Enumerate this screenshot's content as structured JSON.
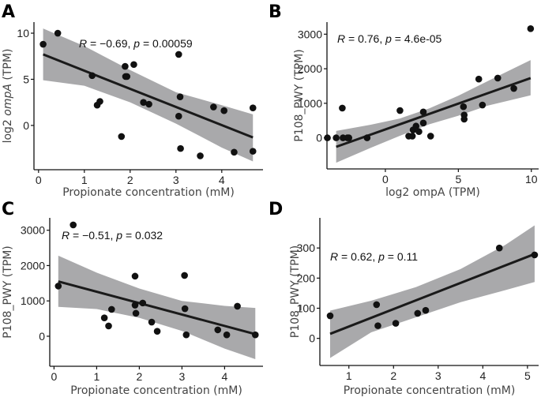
{
  "chart_data": [
    {
      "type": "scatter",
      "panel": "A",
      "title": "",
      "xlabel": "Propionate concentration (mM)",
      "ylabel": "log2 ompA (TPM)",
      "ylabel_prefix": "log2 ",
      "ylabel_italic": "ompA",
      "ylabel_suffix": " (TPM)",
      "xlim": [
        -0.1,
        4.9
      ],
      "ylim": [
        -4.8,
        11.2
      ],
      "xticks": [
        0,
        1,
        2,
        3,
        4
      ],
      "yticks": [
        0,
        5,
        10
      ],
      "grid": false,
      "annotation": {
        "r_label": "R",
        "r_value": " = −0.69, ",
        "p_label": "p",
        "p_value": " = 0.00059"
      },
      "fit": {
        "x": [
          0.1,
          4.68
        ],
        "y": [
          7.7,
          -1.3
        ]
      },
      "ci_band": {
        "x": [
          0.1,
          1.0,
          2.0,
          3.0,
          4.0,
          4.68
        ],
        "upper": [
          10.5,
          8.6,
          6.0,
          3.6,
          2.2,
          1.2
        ],
        "lower": [
          4.9,
          4.3,
          2.5,
          0.2,
          -2.4,
          -3.9
        ]
      },
      "points": {
        "x": [
          0.1,
          0.42,
          1.17,
          1.28,
          1.34,
          1.81,
          1.89,
          1.9,
          1.93,
          2.08,
          2.29,
          2.41,
          3.06,
          3.06,
          3.09,
          3.1,
          3.53,
          3.82,
          4.05,
          4.27,
          4.68,
          4.68
        ],
        "y": [
          8.8,
          10.0,
          5.4,
          2.2,
          2.6,
          -1.2,
          6.4,
          5.3,
          5.3,
          6.6,
          2.5,
          2.3,
          7.7,
          1.0,
          3.1,
          -2.5,
          -3.3,
          2.0,
          1.6,
          -2.9,
          1.9,
          -2.8
        ]
      }
    },
    {
      "type": "scatter",
      "panel": "B",
      "title": "",
      "xlabel": "log2 ompA (TPM)",
      "ylabel": "P108_PWY (TPM)",
      "xlim": [
        -4.0,
        10.5
      ],
      "ylim": [
        -900,
        3350
      ],
      "xticks": [
        0,
        5,
        10
      ],
      "yticks": [
        0,
        1000,
        2000,
        3000
      ],
      "grid": false,
      "annotation": {
        "r_label": "R",
        "r_value": " = 0.76, ",
        "p_label": "p",
        "p_value": " = 4.6e-05"
      },
      "fit": {
        "x": [
          -3.37,
          9.95
        ],
        "y": [
          -260,
          1730
        ]
      },
      "ci_band": {
        "x": [
          -3.37,
          -1.0,
          1.0,
          3.0,
          5.0,
          7.0,
          9.95
        ],
        "upper": [
          200,
          380,
          560,
          850,
          1220,
          1640,
          2250
        ],
        "lower": [
          -720,
          -290,
          60,
          390,
          640,
          930,
          1230
        ]
      },
      "points": {
        "x": [
          -3.97,
          -3.37,
          -2.9,
          -2.6,
          -2.5,
          -2.95,
          -1.25,
          1.0,
          1.6,
          1.85,
          1.9,
          2.1,
          2.3,
          2.6,
          2.6,
          3.1,
          5.35,
          5.4,
          5.4,
          6.4,
          6.65,
          7.7,
          8.8,
          9.95
        ],
        "y": [
          0,
          0,
          0,
          0,
          0,
          860,
          0,
          790,
          50,
          50,
          230,
          340,
          180,
          430,
          750,
          50,
          900,
          660,
          540,
          1700,
          950,
          1730,
          1430,
          3160
        ]
      }
    },
    {
      "type": "scatter",
      "panel": "C",
      "title": "",
      "xlabel": "Propionate concentration (mM)",
      "ylabel": "P108_PWY (TPM)",
      "xlim": [
        -0.1,
        4.9
      ],
      "ylim": [
        -850,
        3350
      ],
      "xticks": [
        0,
        1,
        2,
        3,
        4
      ],
      "yticks": [
        0,
        1000,
        2000,
        3000
      ],
      "grid": false,
      "annotation": {
        "r_label": "R",
        "r_value": " = −0.51, ",
        "p_label": "p",
        "p_value": " = 0.032"
      },
      "fit": {
        "x": [
          0.1,
          4.72
        ],
        "y": [
          1550,
          60
        ]
      },
      "ci_band": {
        "x": [
          0.1,
          1.0,
          2.0,
          3.0,
          4.0,
          4.72
        ],
        "upper": [
          2280,
          1800,
          1350,
          1000,
          860,
          800
        ],
        "lower": [
          830,
          770,
          520,
          150,
          -350,
          -650
        ]
      },
      "points": {
        "x": [
          0.1,
          0.45,
          1.18,
          1.28,
          1.35,
          1.9,
          1.9,
          1.92,
          2.08,
          2.29,
          2.42,
          3.06,
          3.07,
          3.1,
          3.84,
          4.05,
          4.3,
          4.72
        ],
        "y": [
          1420,
          3150,
          520,
          290,
          760,
          1700,
          880,
          650,
          940,
          400,
          140,
          1720,
          780,
          40,
          180,
          40,
          850,
          40
        ]
      }
    },
    {
      "type": "scatter",
      "panel": "D",
      "title": "",
      "xlabel": "Propionate concentration (mM)",
      "ylabel": "P108_PWY (TPM)",
      "xlim": [
        0.35,
        5.25
      ],
      "ylim": [
        -90,
        400
      ],
      "xticks": [
        1,
        2,
        3,
        4,
        5
      ],
      "yticks": [
        0,
        100,
        200,
        300
      ],
      "grid": false,
      "annotation": {
        "r_label": "R",
        "r_value": " = 0.62, ",
        "p_label": "p",
        "p_value": " = 0.11"
      },
      "fit": {
        "x": [
          0.58,
          5.16
        ],
        "y": [
          15,
          280
        ]
      },
      "ci_band": {
        "x": [
          0.58,
          1.5,
          2.5,
          3.5,
          4.5,
          5.16
        ],
        "upper": [
          92,
          125,
          170,
          230,
          310,
          375
        ],
        "lower": [
          -65,
          20,
          70,
          120,
          160,
          187
        ]
      },
      "points": {
        "x": [
          0.58,
          1.62,
          1.65,
          2.05,
          2.54,
          2.72,
          4.37,
          5.16
        ],
        "y": [
          75,
          112,
          42,
          50,
          83,
          93,
          300,
          277
        ]
      }
    }
  ],
  "colors": {
    "points": "#111111",
    "fit_line": "#1a1a1a",
    "ci_band": "#a9a9ab",
    "axis": "#111111"
  }
}
